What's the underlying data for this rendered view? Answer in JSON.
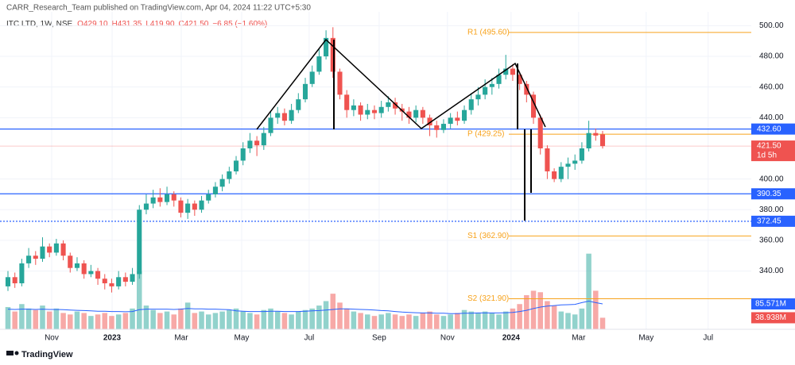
{
  "header": {
    "published": "CARR_Research_Team published on TradingView.com, Apr 04, 2024 11:22 UTC+5:30",
    "symbol": "ITC LTD, 1W, NSE",
    "open": "O429.10",
    "high": "H431.35",
    "low": "L419.90",
    "close": "C421.50",
    "change": "−6.85 (−1.60%)"
  },
  "footer": {
    "brand": "TradingView"
  },
  "chart_data": {
    "type": "candlestick",
    "up_color": "#26a69a",
    "down_color": "#ef5350",
    "xlim": [
      -1.15,
      107.5
    ],
    "xticks": [
      {
        "value": 6.32,
        "label": "Nov"
      },
      {
        "value": 15.06,
        "label": "2023"
      },
      {
        "value": 25.06,
        "label": "Mar"
      },
      {
        "value": 33.8,
        "label": "May"
      },
      {
        "value": 43.56,
        "label": "Jul"
      },
      {
        "value": 53.68,
        "label": "Sep"
      },
      {
        "value": 63.56,
        "label": "Nov"
      },
      {
        "value": 72.76,
        "label": "2024"
      },
      {
        "value": 82.53,
        "label": "Mar"
      },
      {
        "value": 92.3,
        "label": "May"
      },
      {
        "value": 101.26,
        "label": "Jul"
      }
    ],
    "ylim": [
      302,
      509
    ],
    "yticks": [
      {
        "value": 500,
        "label": "500.00"
      },
      {
        "value": 480,
        "label": "480.00"
      },
      {
        "value": 460,
        "label": "460.00"
      },
      {
        "value": 440,
        "label": "440.00"
      },
      {
        "value": 400,
        "label": "400.00"
      },
      {
        "value": 380,
        "label": "380.00"
      },
      {
        "value": 360,
        "label": "360.00"
      },
      {
        "value": 340,
        "label": "340.00"
      }
    ],
    "grid": true,
    "opens": [
      330,
      336,
      332,
      345,
      350,
      348,
      356,
      352,
      358,
      350,
      342,
      345,
      338,
      340,
      335,
      332,
      330,
      336,
      333,
      338,
      380,
      384,
      388,
      385,
      390,
      386,
      378,
      384,
      380,
      386,
      390,
      395,
      400,
      405,
      412,
      420,
      425,
      422,
      430,
      440,
      443,
      438,
      445,
      452,
      462,
      470,
      480,
      492,
      470,
      455,
      445,
      448,
      442,
      445,
      443,
      447,
      450,
      446,
      444,
      440,
      445,
      440,
      435,
      432,
      436,
      440,
      438,
      445,
      452,
      455,
      460,
      462,
      468,
      472,
      468,
      462,
      455,
      440,
      420,
      405,
      400,
      408,
      410,
      412,
      420,
      430,
      429.1
    ],
    "highs": [
      340,
      339,
      348,
      355,
      353,
      362,
      358,
      361,
      360,
      352,
      349,
      347,
      344,
      342,
      338,
      335,
      340,
      339,
      342,
      383,
      390,
      393,
      394,
      395,
      392,
      388,
      387,
      386,
      389,
      393,
      398,
      403,
      408,
      415,
      424,
      430,
      428,
      434,
      444,
      447,
      446,
      449,
      456,
      466,
      474,
      485,
      497,
      499,
      472,
      458,
      452,
      450,
      449,
      448,
      451,
      454,
      453,
      449,
      447,
      448,
      447,
      442,
      438,
      439,
      443,
      444,
      448,
      456,
      460,
      465,
      466,
      472,
      481,
      475,
      470,
      464,
      457,
      442,
      422,
      407,
      411,
      414,
      416,
      424,
      438,
      433,
      431.35
    ],
    "lows": [
      327,
      329,
      330,
      342,
      344,
      346,
      349,
      350,
      347,
      339,
      340,
      335,
      336,
      331,
      328,
      326,
      328,
      330,
      331,
      335,
      377,
      381,
      382,
      383,
      382,
      375,
      374,
      376,
      378,
      384,
      388,
      392,
      397,
      403,
      409,
      417,
      415,
      419,
      428,
      436,
      435,
      436,
      443,
      450,
      460,
      468,
      478,
      466,
      452,
      440,
      441,
      438,
      439,
      439,
      440,
      444,
      442,
      438,
      436,
      437,
      436,
      428,
      427,
      430,
      433,
      435,
      436,
      442,
      448,
      452,
      455,
      459,
      465,
      464,
      458,
      450,
      436,
      416,
      400,
      398,
      398,
      400,
      406,
      410,
      418,
      425,
      419.9
    ],
    "closes": [
      336,
      332,
      345,
      350,
      348,
      356,
      352,
      358,
      350,
      342,
      345,
      338,
      340,
      335,
      332,
      330,
      336,
      333,
      338,
      380,
      384,
      388,
      385,
      390,
      386,
      378,
      384,
      380,
      386,
      390,
      395,
      400,
      405,
      412,
      420,
      425,
      422,
      430,
      440,
      443,
      438,
      445,
      452,
      462,
      470,
      480,
      492,
      470,
      455,
      445,
      448,
      442,
      445,
      443,
      447,
      450,
      446,
      444,
      440,
      445,
      440,
      435,
      432,
      436,
      440,
      438,
      445,
      452,
      455,
      460,
      462,
      468,
      472,
      468,
      462,
      455,
      440,
      420,
      405,
      400,
      408,
      410,
      412,
      420,
      430,
      428.35,
      421.5
    ],
    "last_label": "421.50",
    "countdown": "1d 5h",
    "y2lim": [
      0,
      1070
    ],
    "volumes": [
      75,
      60,
      85,
      70,
      65,
      80,
      60,
      70,
      55,
      50,
      60,
      55,
      45,
      50,
      55,
      45,
      50,
      55,
      70,
      195,
      80,
      65,
      55,
      60,
      50,
      70,
      90,
      55,
      60,
      50,
      55,
      60,
      65,
      70,
      60,
      55,
      50,
      65,
      70,
      60,
      55,
      50,
      60,
      65,
      70,
      80,
      95,
      120,
      90,
      70,
      60,
      55,
      50,
      45,
      50,
      55,
      50,
      45,
      50,
      45,
      55,
      60,
      50,
      45,
      50,
      55,
      65,
      60,
      55,
      60,
      55,
      50,
      60,
      70,
      85,
      115,
      130,
      125,
      95,
      80,
      60,
      55,
      50,
      70,
      255,
      130,
      38.938
    ],
    "volume_label": "38.938M",
    "volume_ma": [
      68,
      67,
      68,
      68,
      67,
      68,
      67,
      67,
      66,
      65,
      64,
      63,
      62,
      61,
      61,
      60,
      60,
      59,
      60,
      66,
      68,
      68,
      68,
      68,
      67,
      68,
      70,
      69,
      69,
      68,
      68,
      67,
      66,
      62,
      61,
      60,
      60,
      60,
      61,
      61,
      60,
      60,
      60,
      61,
      62,
      63,
      65,
      67,
      69,
      69,
      68,
      67,
      66,
      65,
      63,
      62,
      60,
      58,
      57,
      56,
      55,
      55,
      54,
      54,
      53,
      53,
      54,
      54,
      55,
      55,
      55,
      55,
      56,
      57,
      60,
      64,
      70,
      75,
      78,
      80,
      82,
      83,
      84,
      90,
      95,
      90,
      85.571
    ],
    "volume_ma_label": "85.571M",
    "volume_ma_color": "#2962ff",
    "levels": [
      {
        "value": 432.6,
        "label": "432.60",
        "color": "#2962ff",
        "style": "solid"
      },
      {
        "value": 390.35,
        "label": "390.35",
        "color": "#2962ff",
        "style": "solid"
      },
      {
        "value": 372.45,
        "label": "372.45",
        "color": "#2962ff",
        "style": "dotted"
      }
    ],
    "pivots": [
      {
        "value": 495.6,
        "label": "R1 (495.60)"
      },
      {
        "value": 429.25,
        "label": "P (429.25)"
      },
      {
        "value": 362.9,
        "label": "S1 (362.90)"
      },
      {
        "value": 321.9,
        "label": "S2 (321.90)"
      }
    ],
    "pivot_color": "#f7a21b"
  }
}
